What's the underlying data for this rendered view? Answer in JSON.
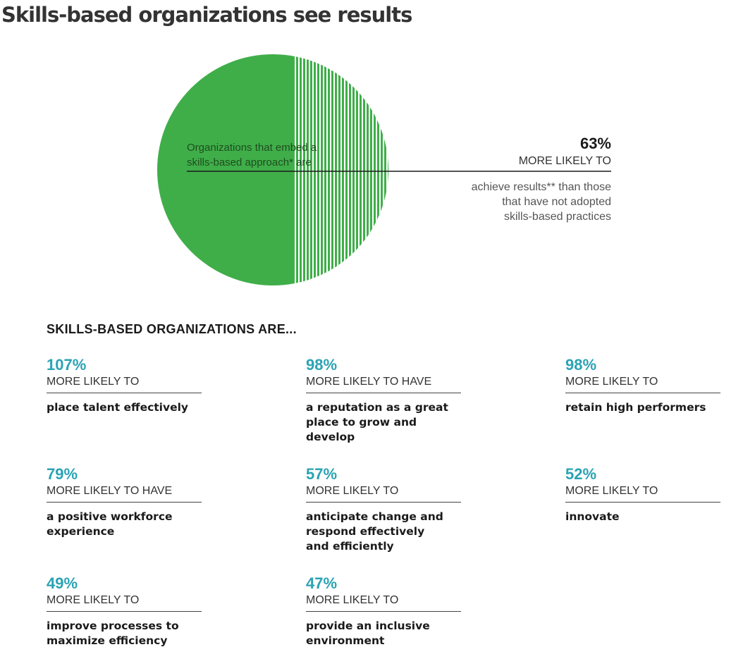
{
  "title": "Skills-based organizations see results",
  "chart_data": {
    "type": "pie",
    "slices": [
      {
        "label": "Organizations that embed a skills-based approach* are",
        "value": 59,
        "color": "#3fae49",
        "pattern": "solid"
      },
      {
        "label": "Organizations that embed a skills-based approach* are",
        "value": 41,
        "color": "#3fae49",
        "pattern": "vertical-stripes"
      }
    ],
    "label_lines": [
      "Organizations that embed a",
      "skills-based approach* are"
    ],
    "annotation": {
      "value": "63%",
      "subtitle": "MORE LIKELY TO",
      "description_lines": [
        "achieve results** than those",
        "that have not adopted",
        "skills-based practices"
      ]
    }
  },
  "section_heading": "SKILLS-BASED ORGANIZATIONS ARE...",
  "stats": [
    {
      "pct": "107%",
      "likely": "MORE LIKELY TO",
      "desc": [
        "place talent effectively"
      ]
    },
    {
      "pct": "98%",
      "likely": "MORE LIKELY TO HAVE",
      "desc": [
        "a reputation as a great",
        "place to grow and",
        "develop"
      ]
    },
    {
      "pct": "98%",
      "likely": "MORE LIKELY TO",
      "desc": [
        "retain high performers"
      ]
    },
    {
      "pct": "79%",
      "likely": "MORE LIKELY TO HAVE",
      "desc": [
        "a positive workforce",
        "experience"
      ]
    },
    {
      "pct": "57%",
      "likely": "MORE LIKELY TO",
      "desc": [
        "anticipate change and",
        "respond effectively",
        "and efficiently"
      ]
    },
    {
      "pct": "52%",
      "likely": "MORE LIKELY TO",
      "desc": [
        "innovate"
      ]
    },
    {
      "pct": "49%",
      "likely": "MORE LIKELY TO",
      "desc": [
        "improve processes to",
        "maximize efficiency"
      ]
    },
    {
      "pct": "47%",
      "likely": "MORE LIKELY TO",
      "desc": [
        "provide an inclusive",
        "environment"
      ]
    }
  ]
}
